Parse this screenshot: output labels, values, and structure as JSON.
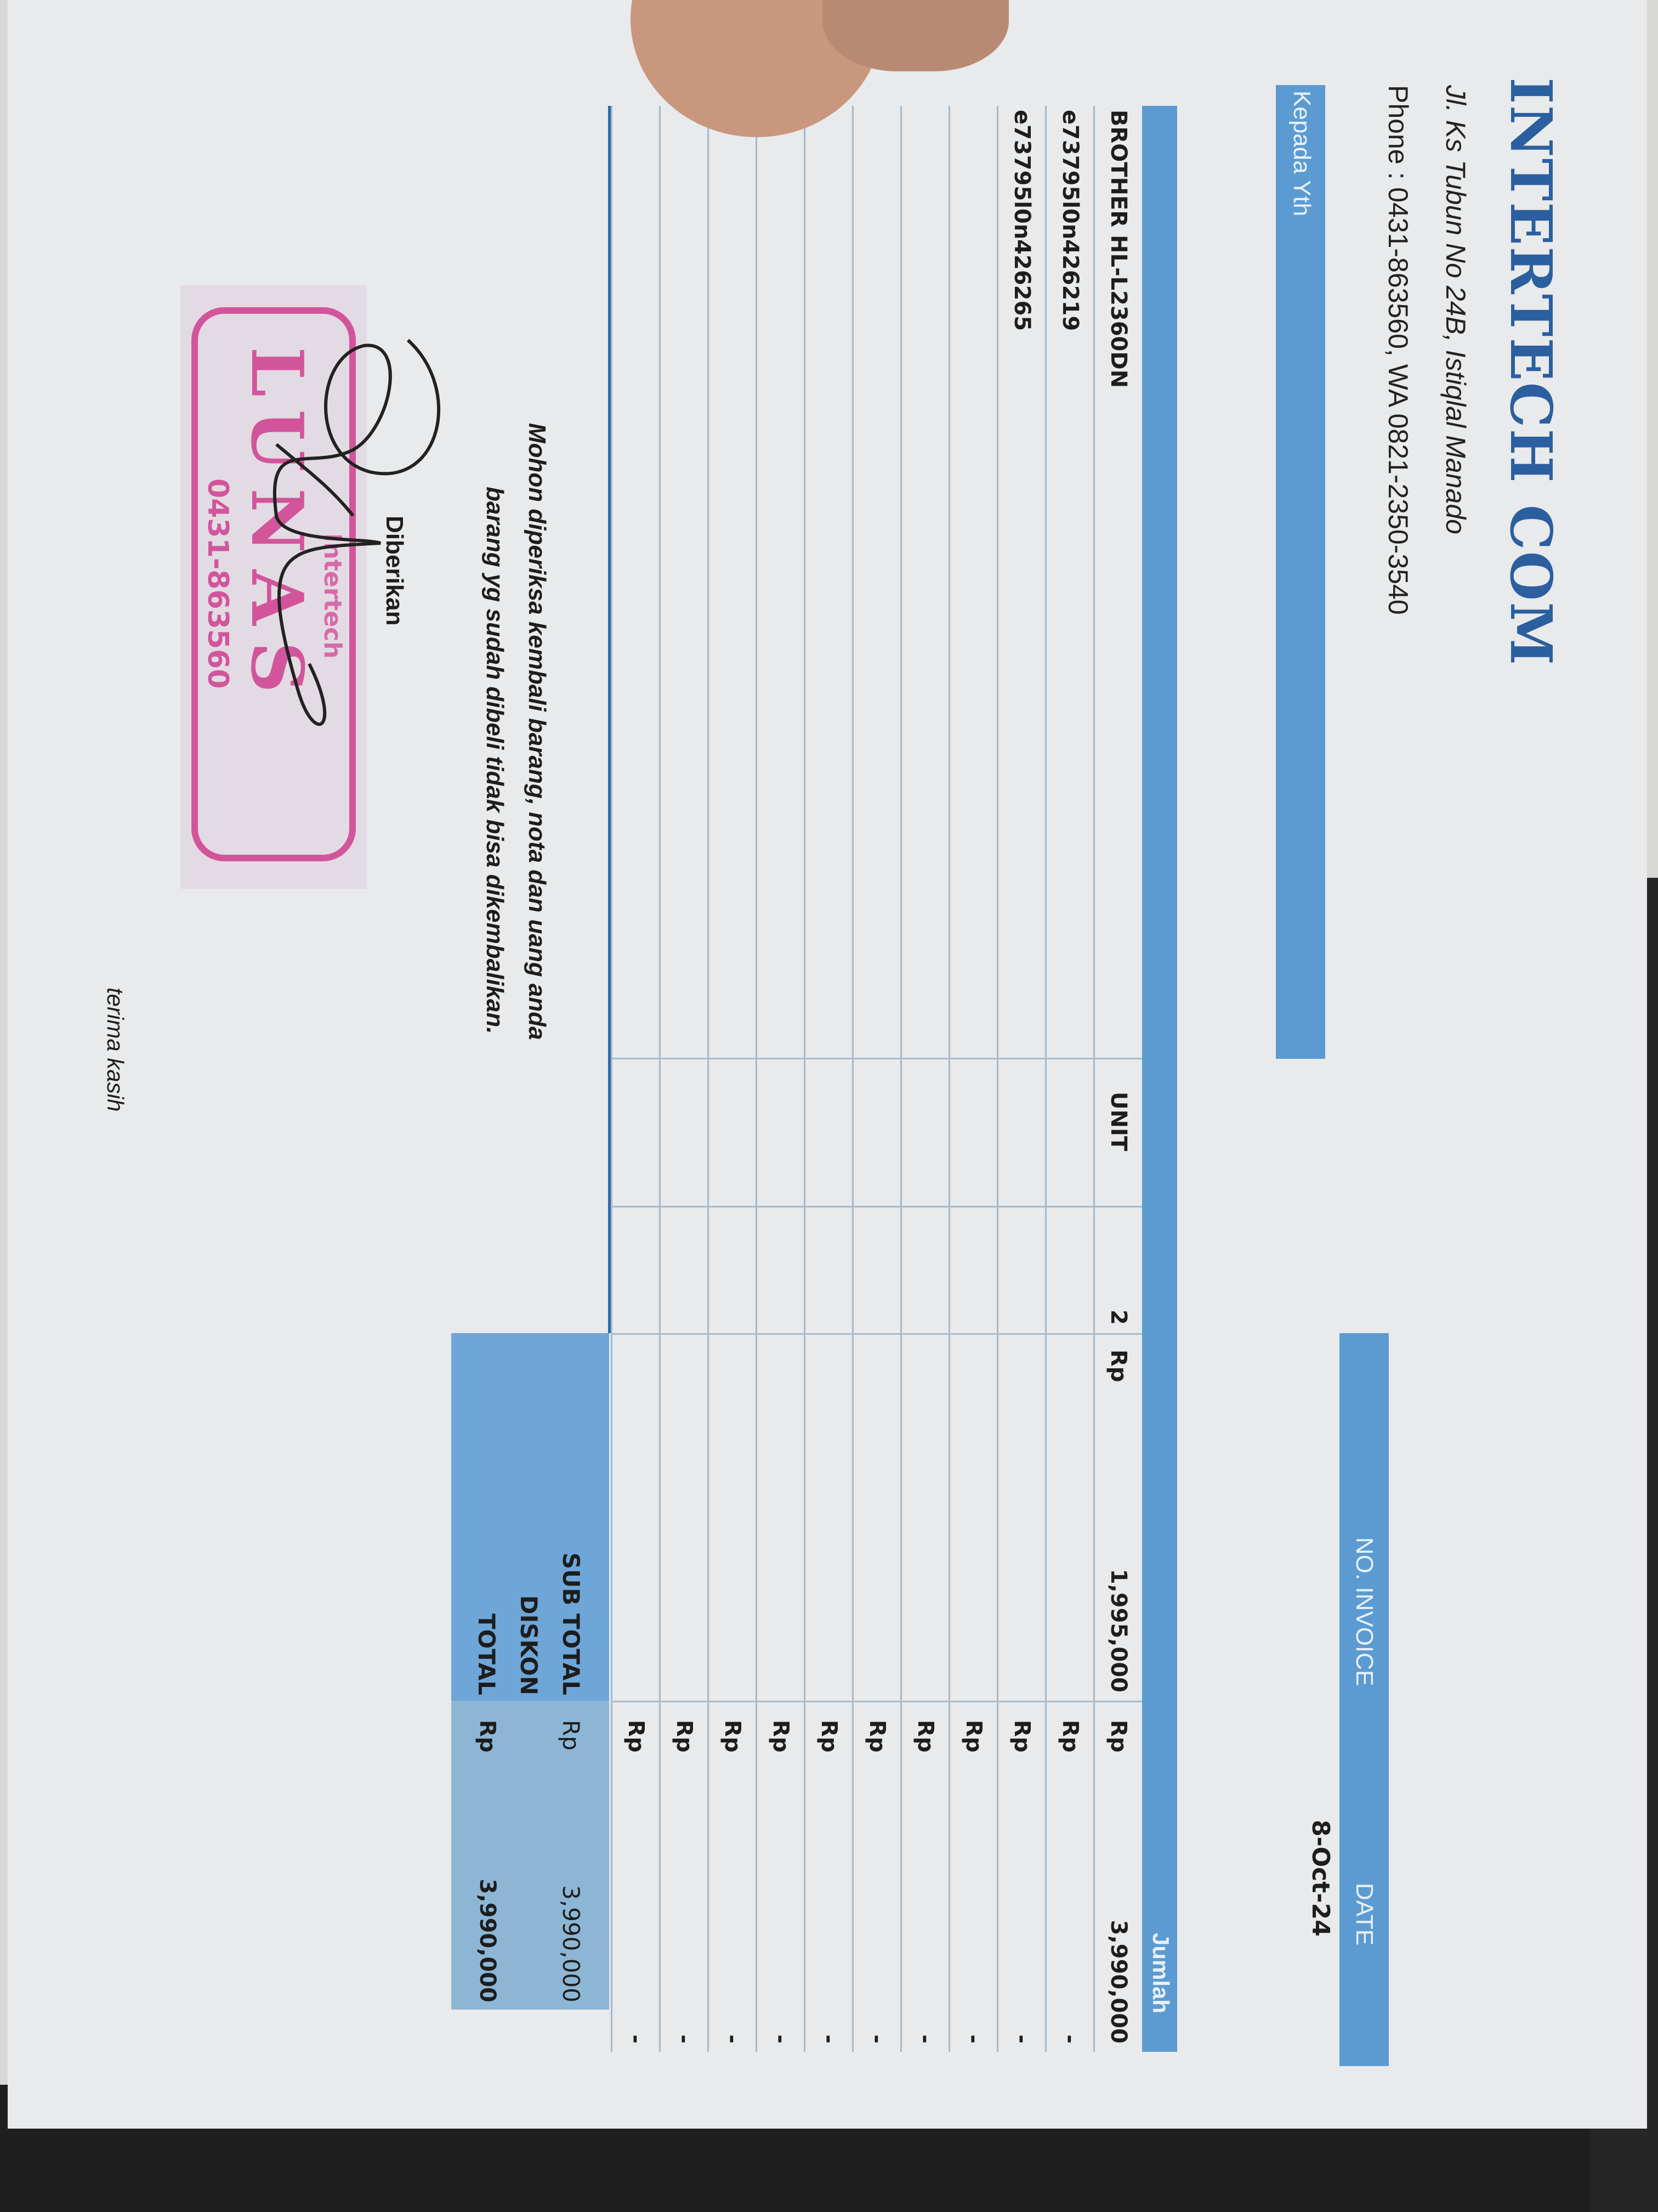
{
  "company": {
    "name": "INTERTECH COM",
    "address": "Jl. Ks Tubun No 24B, Istiqlal Manado",
    "phone": "Phone : 0431-863560, WA 0821-2350-3540"
  },
  "recipient_label": "Kepada Yth",
  "invoice": {
    "number_label": "NO. INVOICE",
    "date_label": "DATE",
    "date_value": "8-Oct-24"
  },
  "table": {
    "amount_header": "Jumlah",
    "rows": [
      {
        "desc": "BROTHER HL-L2360DN",
        "unit": "UNIT",
        "qty": "2",
        "price_cur": "Rp",
        "price": "1,995,000",
        "amount_cur": "Rp",
        "amount": "3,990,000"
      },
      {
        "desc": "e73795l0n426219",
        "unit": "",
        "qty": "",
        "price_cur": "",
        "price": "",
        "amount_cur": "Rp",
        "amount": "-"
      },
      {
        "desc": "e73795l0n426265",
        "unit": "",
        "qty": "",
        "price_cur": "",
        "price": "",
        "amount_cur": "Rp",
        "amount": "-"
      },
      {
        "desc": "",
        "unit": "",
        "qty": "",
        "price_cur": "",
        "price": "",
        "amount_cur": "Rp",
        "amount": "-"
      },
      {
        "desc": "",
        "unit": "",
        "qty": "",
        "price_cur": "",
        "price": "",
        "amount_cur": "Rp",
        "amount": "-"
      },
      {
        "desc": "",
        "unit": "",
        "qty": "",
        "price_cur": "",
        "price": "",
        "amount_cur": "Rp",
        "amount": "-"
      },
      {
        "desc": "",
        "unit": "",
        "qty": "",
        "price_cur": "",
        "price": "",
        "amount_cur": "Rp",
        "amount": "-"
      },
      {
        "desc": "",
        "unit": "",
        "qty": "",
        "price_cur": "",
        "price": "",
        "amount_cur": "Rp",
        "amount": "-"
      },
      {
        "desc": "",
        "unit": "",
        "qty": "",
        "price_cur": "",
        "price": "",
        "amount_cur": "Rp",
        "amount": "-"
      },
      {
        "desc": "",
        "unit": "",
        "qty": "",
        "price_cur": "",
        "price": "",
        "amount_cur": "Rp",
        "amount": "-"
      },
      {
        "desc": "",
        "unit": "",
        "qty": "",
        "price_cur": "",
        "price": "",
        "amount_cur": "Rp",
        "amount": "-"
      }
    ]
  },
  "summary": {
    "subtotal_label": "SUB TOTAL",
    "subtotal_cur": "Rp",
    "subtotal_value": "3,990,000",
    "discount_label": "DISKON",
    "total_label": "TOTAL",
    "total_cur": "Rp",
    "total_value": "3,990,000"
  },
  "note_line1": "Mohon diperiksa kembali barang, nota dan uang anda",
  "note_line2": "barang yg sudah dibeli tidak bisa dikembalikan.",
  "signature_label": "Diberikan",
  "stamp": {
    "company": "Intertech",
    "word": "LUNAS",
    "phone": "0431-863560"
  },
  "closing": "terima kasih",
  "colors": {
    "brand_blue": "#2b5f9f",
    "bar_blue": "#5b9bd1",
    "stamp_pink": "#d2559c"
  }
}
